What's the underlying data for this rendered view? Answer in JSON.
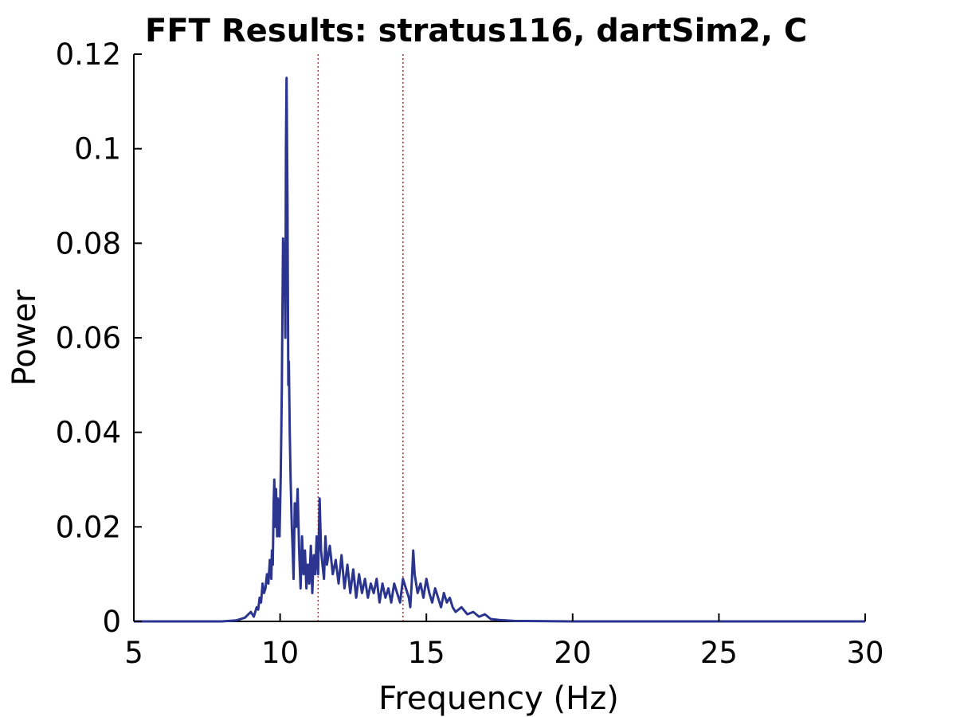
{
  "chart_data": {
    "type": "line",
    "title": "FFT Results: stratus116, dartSim2, C",
    "xlabel": "Frequency (Hz)",
    "ylabel": "Power",
    "xlim": [
      5,
      30
    ],
    "ylim": [
      0,
      0.12
    ],
    "xticks": [
      "5",
      "10",
      "15",
      "20",
      "25",
      "30"
    ],
    "yticks": [
      "0",
      "0.02",
      "0.04",
      "0.06",
      "0.08",
      "0.1",
      "0.12"
    ],
    "grid": false,
    "legend": "none",
    "colors": {
      "series": "#2b3590",
      "markers": "#cc2222"
    },
    "vertical_lines": [
      11.3,
      14.2
    ],
    "series": [
      {
        "x": [
          5.0,
          8.0,
          8.5,
          8.8,
          9.0,
          9.1,
          9.2,
          9.25,
          9.3,
          9.35,
          9.4,
          9.45,
          9.5,
          9.55,
          9.6,
          9.65,
          9.7,
          9.72,
          9.75,
          9.78,
          9.8,
          9.83,
          9.86,
          9.9,
          9.92,
          9.95,
          9.98,
          10.0,
          10.02,
          10.04,
          10.06,
          10.08,
          10.1,
          10.12,
          10.15,
          10.18,
          10.2,
          10.22,
          10.25,
          10.28,
          10.3,
          10.33,
          10.36,
          10.4,
          10.43,
          10.46,
          10.5,
          10.55,
          10.6,
          10.65,
          10.7,
          10.75,
          10.8,
          10.85,
          10.9,
          10.95,
          11.0,
          11.05,
          11.1,
          11.15,
          11.2,
          11.25,
          11.3,
          11.35,
          11.4,
          11.45,
          11.5,
          11.55,
          11.6,
          11.7,
          11.8,
          11.9,
          12.0,
          12.1,
          12.2,
          12.3,
          12.4,
          12.5,
          12.6,
          12.7,
          12.8,
          12.9,
          13.0,
          13.1,
          13.2,
          13.3,
          13.4,
          13.5,
          13.6,
          13.7,
          13.8,
          13.9,
          14.0,
          14.1,
          14.2,
          14.3,
          14.4,
          14.45,
          14.5,
          14.55,
          14.6,
          14.7,
          14.8,
          14.9,
          15.0,
          15.1,
          15.2,
          15.3,
          15.4,
          15.5,
          15.6,
          15.7,
          15.8,
          15.9,
          16.0,
          16.2,
          16.4,
          16.6,
          16.8,
          17.0,
          17.2,
          17.5,
          18.0,
          20.0,
          25.0,
          30.0
        ],
        "y": [
          0,
          0,
          0.0002,
          0.0008,
          0.002,
          0.001,
          0.003,
          0.0025,
          0.005,
          0.004,
          0.008,
          0.006,
          0.007,
          0.01,
          0.008,
          0.013,
          0.009,
          0.015,
          0.012,
          0.025,
          0.03,
          0.02,
          0.028,
          0.018,
          0.026,
          0.022,
          0.018,
          0.024,
          0.03,
          0.04,
          0.05,
          0.065,
          0.081,
          0.07,
          0.08,
          0.06,
          0.1,
          0.115,
          0.09,
          0.05,
          0.055,
          0.04,
          0.03,
          0.02,
          0.015,
          0.009,
          0.025,
          0.02,
          0.028,
          0.015,
          0.007,
          0.018,
          0.01,
          0.015,
          0.007,
          0.012,
          0.008,
          0.016,
          0.006,
          0.014,
          0.01,
          0.018,
          0.01,
          0.026,
          0.015,
          0.012,
          0.009,
          0.018,
          0.012,
          0.016,
          0.01,
          0.013,
          0.008,
          0.014,
          0.007,
          0.012,
          0.006,
          0.011,
          0.005,
          0.01,
          0.006,
          0.009,
          0.005,
          0.008,
          0.006,
          0.009,
          0.004,
          0.008,
          0.005,
          0.007,
          0.004,
          0.008,
          0.006,
          0.004,
          0.009,
          0.007,
          0.005,
          0.003,
          0.008,
          0.015,
          0.01,
          0.006,
          0.008,
          0.005,
          0.009,
          0.006,
          0.004,
          0.007,
          0.005,
          0.003,
          0.006,
          0.004,
          0.005,
          0.003,
          0.002,
          0.003,
          0.0015,
          0.002,
          0.001,
          0.0015,
          0.0005,
          0.0003,
          0.0001,
          0,
          0,
          0
        ]
      }
    ]
  }
}
